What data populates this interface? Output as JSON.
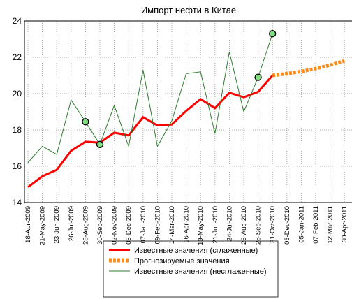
{
  "chart_data": {
    "type": "line",
    "title": "Импорт нефти в Китае",
    "categories": [
      "18-Apr-2009",
      "21-May-2009",
      "23-Jun-2009",
      "26-Jul-2009",
      "28-Aug-2009",
      "30-Sep-2009",
      "02-Nov-2009",
      "05-Dec-2009",
      "07-Jan-2010",
      "09-Feb-2010",
      "14-Mar-2010",
      "16-Apr-2010",
      "19-May-2010",
      "21-Jun-2010",
      "24-Jul-2010",
      "26-Aug-2010",
      "28-Sep-2010",
      "31-Oct-2010",
      "03-Dec-2010",
      "05-Jan-2011",
      "07-Feb-2011",
      "12-Mar-2011",
      "30-Apr-2011"
    ],
    "series": [
      {
        "name": "Известные значения (сглаженные)",
        "color": "#ff0000",
        "width": 3,
        "values": [
          14.85,
          15.45,
          15.8,
          16.85,
          17.35,
          17.3,
          17.85,
          17.7,
          18.7,
          18.25,
          18.3,
          19.05,
          19.7,
          19.2,
          20.05,
          19.8,
          20.1,
          21.0,
          null,
          null,
          null,
          null,
          null
        ]
      },
      {
        "name": "Прогнозируемые значения",
        "color": "#ff8c1a",
        "width": 5,
        "dash": true,
        "values": [
          null,
          null,
          null,
          null,
          null,
          null,
          null,
          null,
          null,
          null,
          null,
          null,
          null,
          null,
          null,
          null,
          null,
          21.0,
          21.1,
          21.22,
          21.38,
          21.57,
          21.8
        ]
      },
      {
        "name": "Известные значения (несглаженные)",
        "color": "#2e7d2e",
        "width": 1,
        "values": [
          16.2,
          17.1,
          16.65,
          19.65,
          18.45,
          17.2,
          19.35,
          17.1,
          21.3,
          17.1,
          18.5,
          21.1,
          21.2,
          17.8,
          22.3,
          19.0,
          20.9,
          23.3,
          null,
          null,
          null,
          null,
          null
        ]
      }
    ],
    "highlight": {
      "color": "#7ee07e",
      "values": [
        null,
        null,
        null,
        null,
        18.45,
        17.2,
        null,
        null,
        null,
        null,
        null,
        null,
        null,
        null,
        null,
        null,
        20.9,
        23.3,
        null,
        null,
        null,
        null,
        null
      ]
    },
    "ylim": [
      14,
      24
    ],
    "yticks": [
      14,
      16,
      18,
      20,
      22,
      24
    ],
    "grid": true
  }
}
